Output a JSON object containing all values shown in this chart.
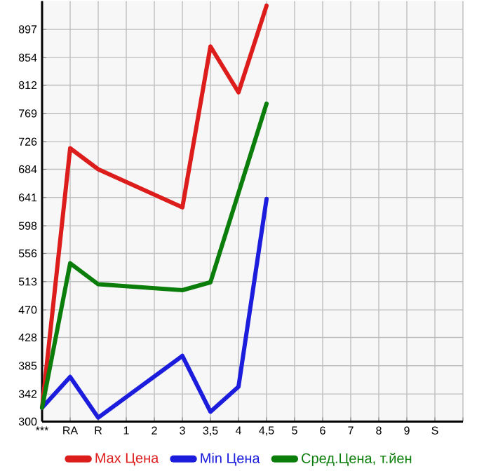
{
  "chart_data": {
    "type": "line",
    "categories": [
      "***",
      "RA",
      "R",
      "1",
      "2",
      "3",
      "3,5",
      "4",
      "4,5",
      "5",
      "6",
      "7",
      "8",
      "9",
      "S",
      null
    ],
    "series": [
      {
        "name": "Max Цена",
        "color": "#dd1c1c",
        "values": [
          321,
          716,
          684,
          null,
          null,
          626,
          871,
          801,
          933,
          null,
          null,
          null,
          null,
          null,
          null,
          null
        ]
      },
      {
        "name": "Min Цена",
        "color": "#1c1cdd",
        "values": [
          321,
          368,
          306,
          null,
          null,
          400,
          315,
          353,
          639,
          null,
          null,
          null,
          null,
          null,
          null,
          null
        ]
      },
      {
        "name": "Сред.Цена, т.йен",
        "color": "#0a7d0a",
        "values": [
          321,
          541,
          509,
          null,
          null,
          500,
          512,
          null,
          784,
          null,
          null,
          null,
          null,
          null,
          null,
          null
        ]
      }
    ],
    "ylim": [
      300,
      940
    ],
    "yticks": [
      300,
      342,
      385,
      428,
      470,
      513,
      556,
      598,
      641,
      684,
      726,
      769,
      812,
      854,
      897
    ],
    "grid": true,
    "legend": "bottom",
    "marker": "none",
    "line_style": "solid"
  }
}
